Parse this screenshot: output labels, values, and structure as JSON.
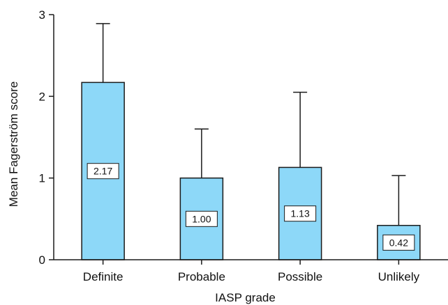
{
  "chart_data": {
    "type": "bar",
    "title": "",
    "xlabel": "IASP grade",
    "ylabel": "Mean Fagerström score",
    "categories": [
      "Definite",
      "Probable",
      "Possible",
      "Unlikely"
    ],
    "values": [
      2.17,
      1.0,
      1.13,
      0.42
    ],
    "value_labels": [
      "2.17",
      "1.00",
      "1.13",
      "0.42"
    ],
    "error_upper": [
      2.89,
      1.6,
      2.05,
      1.03
    ],
    "ylim": [
      0,
      3
    ],
    "yticks": [
      0,
      1,
      2,
      3
    ],
    "ytick_labels": [
      "0",
      "1",
      "2",
      "3"
    ],
    "grid": false,
    "legend": "none",
    "colors": {
      "bar_fill": "#8DD8F8",
      "bar_stroke": "#1a1a1a",
      "axis": "#1a1a1a",
      "label_box": "#ffffff"
    }
  }
}
